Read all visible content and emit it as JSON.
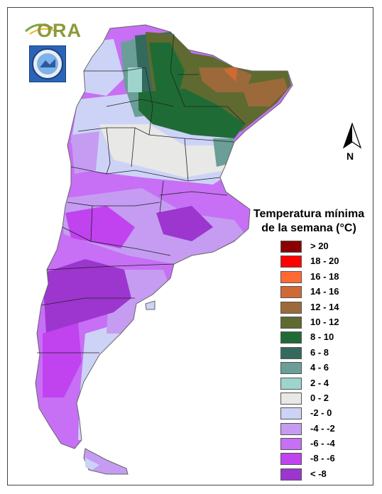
{
  "map": {
    "logo_text": "ORA",
    "north_label": "N"
  },
  "legend": {
    "title_line1": "Temperatura mínima",
    "title_line2": "de la semana (°C)",
    "classes": [
      {
        "label": "> 20",
        "color": "#8b0000"
      },
      {
        "label": "18 - 20",
        "color": "#ff0000"
      },
      {
        "label": "16 - 18",
        "color": "#ff6a33"
      },
      {
        "label": "14 - 16",
        "color": "#cf6a35"
      },
      {
        "label": "12 - 14",
        "color": "#9c6a3a"
      },
      {
        "label": "10 - 12",
        "color": "#5e6a30"
      },
      {
        "label": "8 - 10",
        "color": "#1f6b35"
      },
      {
        "label": "6 - 8",
        "color": "#346a5e"
      },
      {
        "label": "4 - 6",
        "color": "#6a9e97"
      },
      {
        "label": "2 - 4",
        "color": "#9ed4cc"
      },
      {
        "label": "0 - 2",
        "color": "#e8e8e6"
      },
      {
        "label": "-2 - 0",
        "color": "#cdd3f7"
      },
      {
        "label": "-4 - -2",
        "color": "#c59cf2"
      },
      {
        "label": "-6 - -4",
        "color": "#c76ff5"
      },
      {
        "label": "-8 - -6",
        "color": "#c043ef"
      },
      {
        "label": "< -8",
        "color": "#9c36cf"
      }
    ]
  }
}
